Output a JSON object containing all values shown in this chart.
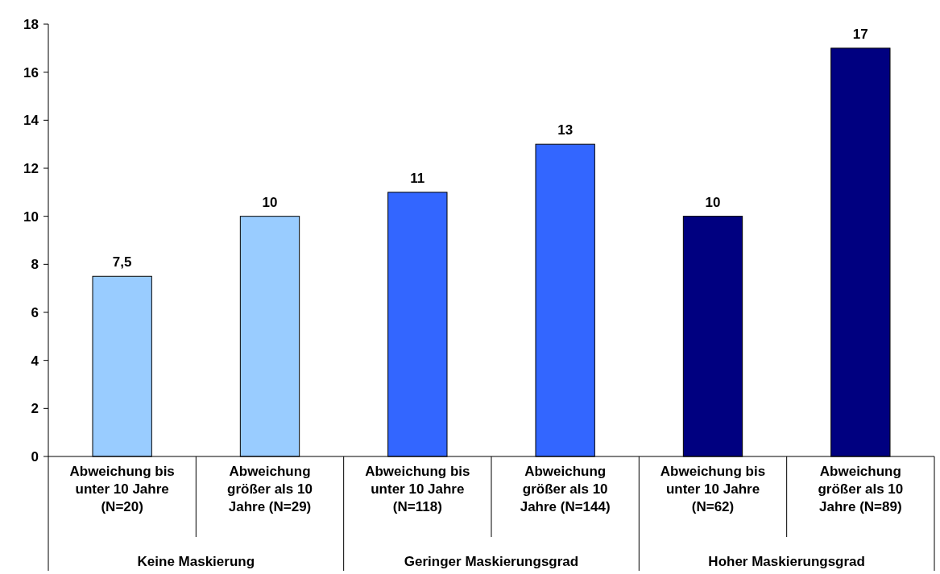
{
  "chart_data": {
    "type": "bar",
    "categories": [
      "Abweichung bis unter 10 Jahre (N=20)",
      "Abweichung größer als 10 Jahre (N=29)",
      "Abweichung bis unter 10 Jahre (N=118)",
      "Abweichung größer als 10 Jahre (N=144)",
      "Abweichung bis unter 10 Jahre (N=62)",
      "Abweichung größer als 10 Jahre (N=89)"
    ],
    "values": [
      7.5,
      10,
      11,
      13,
      10,
      17
    ],
    "colors": [
      "#99ccff",
      "#99ccff",
      "#3366ff",
      "#3366ff",
      "#000080",
      "#000080"
    ],
    "value_labels": [
      "7,5",
      "10",
      "11",
      "13",
      "10",
      "17"
    ],
    "ylim": [
      0,
      18
    ],
    "yticks": [
      0,
      2,
      4,
      6,
      8,
      10,
      12,
      14,
      16,
      18
    ],
    "annotations": [
      "Keine Maskierung",
      "Geringer Maskierungsgrad",
      "Hoher Maskierungsgrad"
    ],
    "orientation": "vertical"
  }
}
